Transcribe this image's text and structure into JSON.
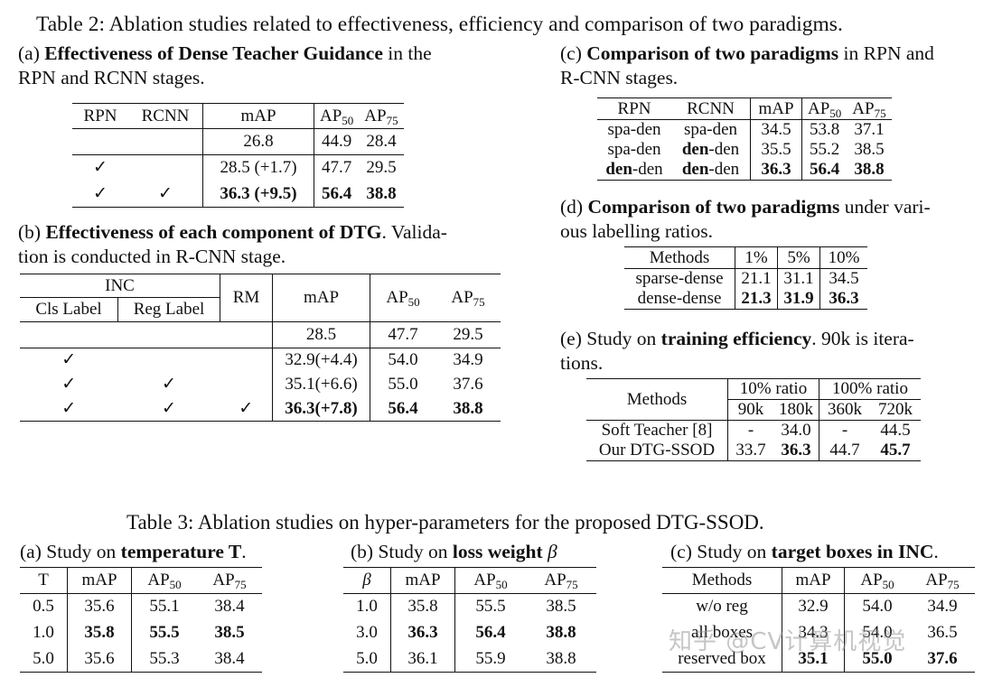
{
  "table2_caption": "Table 2: Ablation studies related to effectiveness, efficiency and comparison of two paradigms.",
  "a": {
    "pre": "(a) ",
    "bold": "Effectiveness of Dense Teacher Guidance",
    "post": " in the",
    "line2": "RPN and RCNN stages.",
    "h": [
      "RPN",
      "RCNN",
      "mAP",
      "AP",
      "AP"
    ],
    "hs": [
      "50",
      "75"
    ],
    "rows": [
      [
        "",
        "",
        "26.8",
        "44.9",
        "28.4"
      ],
      [
        "✓",
        "",
        "28.5 (+1.7)",
        "47.7",
        "29.5"
      ],
      [
        "✓",
        "✓",
        "36.3 (+9.5)",
        "56.4",
        "38.8"
      ]
    ]
  },
  "b": {
    "pre": "(b) ",
    "bold": "Effectiveness of each component of DTG",
    "post": ". Valida-",
    "line2": "tion is conducted in R-CNN stage.",
    "inc": "INC",
    "cls": "Cls Label",
    "reg": "Reg Label",
    "rm": "RM",
    "map": "mAP",
    "ap": "AP",
    "s50": "50",
    "s75": "75",
    "rows": [
      [
        "",
        "",
        "",
        "28.5",
        "47.7",
        "29.5"
      ],
      [
        "✓",
        "",
        "",
        "32.9(+4.4)",
        "54.0",
        "34.9"
      ],
      [
        "✓",
        "✓",
        "",
        "35.1(+6.6)",
        "55.0",
        "37.6"
      ],
      [
        "✓",
        "✓",
        "✓",
        "36.3(+7.8)",
        "56.4",
        "38.8"
      ]
    ]
  },
  "c": {
    "pre": "(c) ",
    "bold": "Comparison of two paradigms",
    "post": " in RPN and",
    "line2": "R-CNN stages.",
    "h": [
      "RPN",
      "RCNN",
      "mAP",
      "AP",
      "AP"
    ],
    "hs": [
      "50",
      "75"
    ],
    "rows": [
      [
        "spa-den",
        "spa-den",
        "34.5",
        "53.8",
        "37.1"
      ],
      [
        "spa-den",
        "den-den",
        "35.5",
        "55.2",
        "38.5"
      ],
      [
        "den-den",
        "den-den",
        "36.3",
        "56.4",
        "38.8"
      ]
    ],
    "bold_prefix": "den"
  },
  "d": {
    "pre": "(d) ",
    "bold": "Comparison of two paradigms",
    "post": " under vari-",
    "line2": "ous labelling ratios.",
    "h": [
      "Methods",
      "1%",
      "5%",
      "10%"
    ],
    "rows": [
      [
        "sparse-dense",
        "21.1",
        "31.1",
        "34.5"
      ],
      [
        "dense-dense",
        "21.3",
        "31.9",
        "36.3"
      ]
    ]
  },
  "e": {
    "pre": "(e) Study on ",
    "bold": "training efficiency",
    "post": ".  90k is itera-",
    "line2": "tions.",
    "methods": "Methods",
    "r10": "10% ratio",
    "r100": "100% ratio",
    "its": [
      "90k",
      "180k",
      "360k",
      "720k"
    ],
    "rows": [
      [
        "Soft Teacher [8]",
        "-",
        "34.0",
        "-",
        "44.5"
      ],
      [
        "Our DTG-SSOD",
        "33.7",
        "36.3",
        "44.7",
        "45.7"
      ]
    ]
  },
  "table3_caption": "Table 3: Ablation studies on hyper-parameters for the proposed DTG-SSOD.",
  "t3a": {
    "pre": "(a) Study on ",
    "bold": "temperature T",
    "post": ".",
    "h": [
      "T",
      "mAP",
      "AP",
      "AP"
    ],
    "rows": [
      [
        "0.5",
        "35.6",
        "55.1",
        "38.4"
      ],
      [
        "1.0",
        "35.8",
        "55.5",
        "38.5"
      ],
      [
        "5.0",
        "35.6",
        "55.3",
        "38.4"
      ]
    ]
  },
  "t3b": {
    "pre": "(b) Study on ",
    "bold": "loss weight",
    "post": " β",
    "h": [
      "β",
      "mAP",
      "AP",
      "AP"
    ],
    "rows": [
      [
        "1.0",
        "35.8",
        "55.5",
        "38.5"
      ],
      [
        "3.0",
        "36.3",
        "56.4",
        "38.8"
      ],
      [
        "5.0",
        "36.1",
        "55.9",
        "38.8"
      ]
    ]
  },
  "t3c": {
    "pre": "(c) Study on ",
    "bold": "target boxes in INC",
    "post": ".",
    "h": [
      "Methods",
      "mAP",
      "AP",
      "AP"
    ],
    "rows": [
      [
        "w/o reg",
        "32.9",
        "54.0",
        "34.9"
      ],
      [
        "all boxes",
        "34.3",
        "54.0",
        "36.5"
      ],
      [
        "reserved box",
        "35.1",
        "55.0",
        "37.6"
      ]
    ]
  },
  "watermark": "知乎 @CV计算机视觉"
}
